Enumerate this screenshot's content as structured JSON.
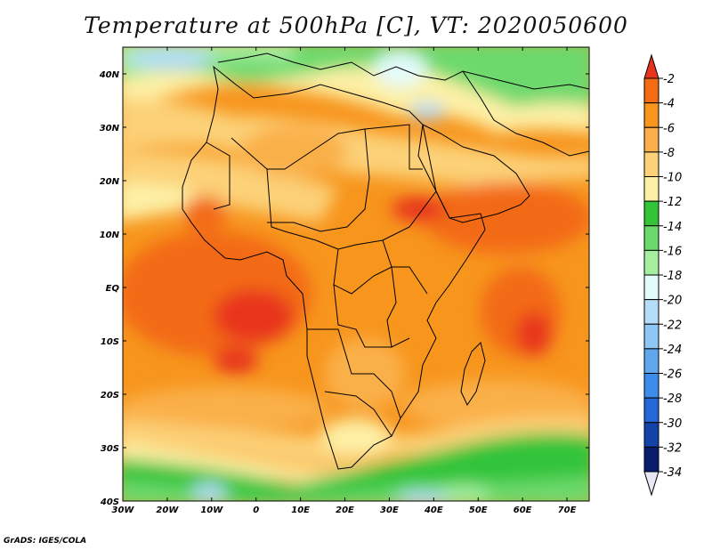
{
  "title": "Temperature at 500hPa [C], VT: 2020050600",
  "credit": "GrADS: IGES/COLA",
  "map": {
    "lon_labels": [
      "30W",
      "20W",
      "10W",
      "0",
      "10E",
      "20E",
      "30E",
      "40E",
      "50E",
      "60E",
      "70E"
    ],
    "lat_labels": [
      "40N",
      "30N",
      "20N",
      "10N",
      "EQ",
      "10S",
      "20S",
      "30S",
      "40S"
    ],
    "lon_range": [
      -30,
      75
    ],
    "lat_range": [
      -40,
      45
    ]
  },
  "colorbar": {
    "levels": [
      "-2",
      "-4",
      "-6",
      "-8",
      "-10",
      "-12",
      "-14",
      "-16",
      "-18",
      "-20",
      "-22",
      "-24",
      "-26",
      "-28",
      "-30",
      "-32",
      "-34"
    ],
    "colors": [
      "#e8341c",
      "#f36b12",
      "#f7951d",
      "#fab04a",
      "#fcd178",
      "#fdf0a6",
      "#33c43a",
      "#6dd96d",
      "#a6eea0",
      "#e3fbfb",
      "#b4ddf7",
      "#8ec6f5",
      "#5fa8ee",
      "#3d8bea",
      "#2368d5",
      "#1443a8",
      "#0a1c6e",
      "#e8e8f5"
    ]
  }
}
